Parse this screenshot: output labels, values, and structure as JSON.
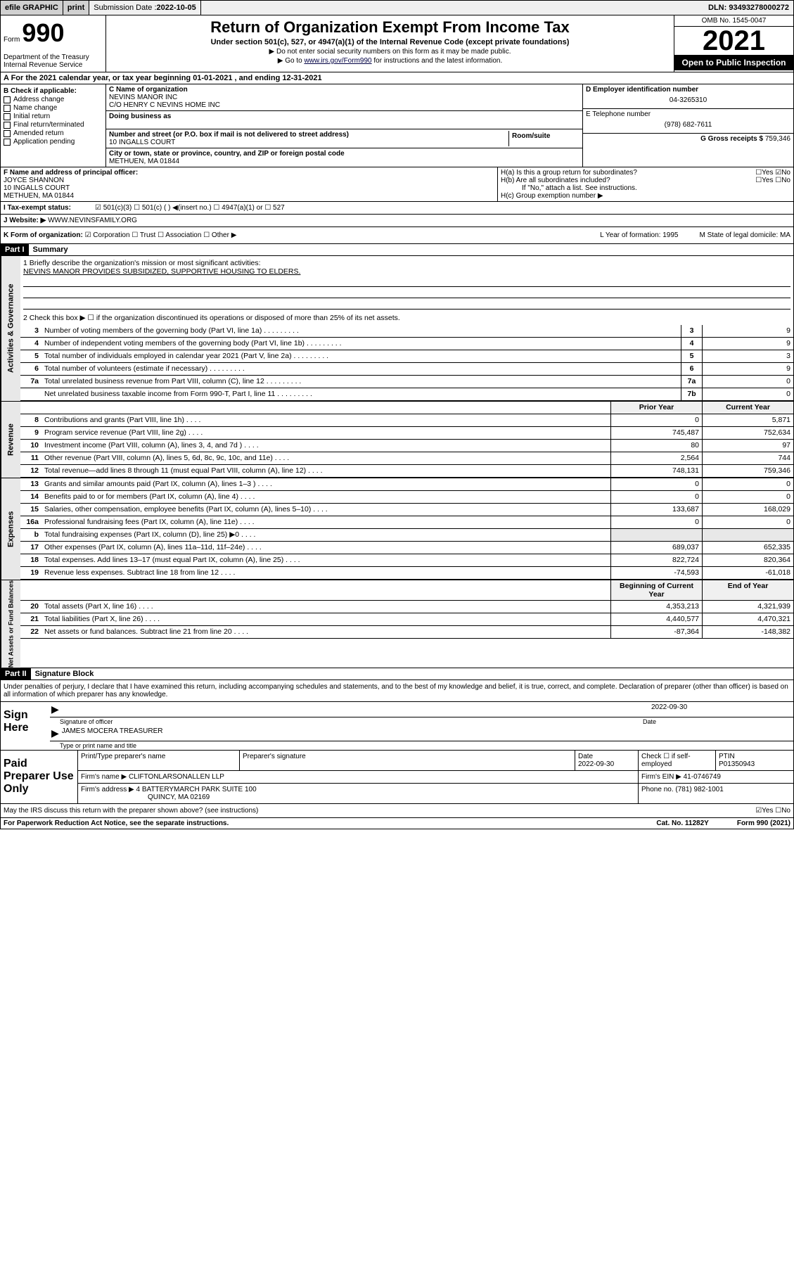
{
  "topbar": {
    "efile": "efile GRAPHIC",
    "print": "print",
    "sub_label": "Submission Date : ",
    "sub_date": "2022-10-05",
    "dln": "DLN: 93493278000272"
  },
  "header": {
    "form_word": "Form",
    "form_num": "990",
    "dept": "Department of the Treasury\nInternal Revenue Service",
    "title": "Return of Organization Exempt From Income Tax",
    "subtitle": "Under section 501(c), 527, or 4947(a)(1) of the Internal Revenue Code (except private foundations)",
    "note1": "▶ Do not enter social security numbers on this form as it may be made public.",
    "note2_pre": "▶ Go to ",
    "note2_link": "www.irs.gov/Form990",
    "note2_post": " for instructions and the latest information.",
    "omb": "OMB No. 1545-0047",
    "year": "2021",
    "inspect": "Open to Public Inspection"
  },
  "row_A": "A For the 2021 calendar year, or tax year beginning 01-01-2021    , and ending 12-31-2021",
  "box_B": {
    "hdr": "B Check if applicable:",
    "items": [
      "Address change",
      "Name change",
      "Initial return",
      "Final return/terminated",
      "Amended return",
      "Application pending"
    ]
  },
  "box_C": {
    "name_lbl": "C Name of organization",
    "name1": "NEVINS MANOR INC",
    "name2": "C/O HENRY C NEVINS HOME INC",
    "dba_lbl": "Doing business as",
    "addr_lbl": "Number and street (or P.O. box if mail is not delivered to street address)",
    "room_lbl": "Room/suite",
    "addr": "10 INGALLS COURT",
    "city_lbl": "City or town, state or province, country, and ZIP or foreign postal code",
    "city": "METHUEN, MA  01844"
  },
  "box_D": {
    "lbl": "D Employer identification number",
    "val": "04-3265310"
  },
  "box_E": {
    "lbl": "E Telephone number",
    "val": "(978) 682-7611"
  },
  "box_G": {
    "lbl": "G Gross receipts $",
    "val": "759,346"
  },
  "box_F": {
    "lbl": "F Name and address of principal officer:",
    "line1": "JOYCE SHANNON",
    "line2": "10 INGALLS COURT",
    "line3": "METHUEN, MA  01844"
  },
  "box_H": {
    "a": "H(a)  Is this a group return for subordinates?",
    "a_ans": "☐Yes ☑No",
    "b": "H(b)  Are all subordinates included?",
    "b_ans": "☐Yes ☐No",
    "b_note": "If \"No,\" attach a list. See instructions.",
    "c": "H(c)  Group exemption number ▶"
  },
  "row_I": {
    "lbl": "I   Tax-exempt status:",
    "opts": "☑ 501(c)(3)   ☐ 501(c) (  ) ◀(insert no.)   ☐ 4947(a)(1) or   ☐ 527"
  },
  "row_J": {
    "lbl": "J   Website: ▶",
    "val": "WWW.NEVINSFAMILY.ORG"
  },
  "row_K": {
    "lbl": "K Form of organization:",
    "opts": "☑ Corporation  ☐ Trust  ☐ Association  ☐ Other ▶",
    "L": "L Year of formation: 1995",
    "M": "M State of legal domicile: MA"
  },
  "part1": {
    "hdr": "Part I",
    "title": "Summary",
    "q1_lbl": "1   Briefly describe the organization's mission or most significant activities:",
    "q1_val": "NEVINS MANOR PROVIDES SUBSIDIZED, SUPPORTIVE HOUSING TO ELDERS.",
    "q2": "2   Check this box ▶ ☐  if the organization discontinued its operations or disposed of more than 25% of its net assets."
  },
  "gov_lines": [
    {
      "n": "3",
      "t": "Number of voting members of the governing body (Part VI, line 1a)",
      "box": "3",
      "v": "9"
    },
    {
      "n": "4",
      "t": "Number of independent voting members of the governing body (Part VI, line 1b)",
      "box": "4",
      "v": "9"
    },
    {
      "n": "5",
      "t": "Total number of individuals employed in calendar year 2021 (Part V, line 2a)",
      "box": "5",
      "v": "3"
    },
    {
      "n": "6",
      "t": "Total number of volunteers (estimate if necessary)",
      "box": "6",
      "v": "9"
    },
    {
      "n": "7a",
      "t": "Total unrelated business revenue from Part VIII, column (C), line 12",
      "box": "7a",
      "v": "0"
    },
    {
      "n": "",
      "t": "Net unrelated business taxable income from Form 990-T, Part I, line 11",
      "box": "7b",
      "v": "0"
    }
  ],
  "col_hdrs": {
    "prior": "Prior Year",
    "current": "Current Year",
    "bcy": "Beginning of Current Year",
    "eoy": "End of Year"
  },
  "rev_lines": [
    {
      "n": "8",
      "t": "Contributions and grants (Part VIII, line 1h)",
      "p": "0",
      "c": "5,871"
    },
    {
      "n": "9",
      "t": "Program service revenue (Part VIII, line 2g)",
      "p": "745,487",
      "c": "752,634"
    },
    {
      "n": "10",
      "t": "Investment income (Part VIII, column (A), lines 3, 4, and 7d )",
      "p": "80",
      "c": "97"
    },
    {
      "n": "11",
      "t": "Other revenue (Part VIII, column (A), lines 5, 6d, 8c, 9c, 10c, and 11e)",
      "p": "2,564",
      "c": "744"
    },
    {
      "n": "12",
      "t": "Total revenue—add lines 8 through 11 (must equal Part VIII, column (A), line 12)",
      "p": "748,131",
      "c": "759,346"
    }
  ],
  "exp_lines": [
    {
      "n": "13",
      "t": "Grants and similar amounts paid (Part IX, column (A), lines 1–3 )",
      "p": "0",
      "c": "0"
    },
    {
      "n": "14",
      "t": "Benefits paid to or for members (Part IX, column (A), line 4)",
      "p": "0",
      "c": "0"
    },
    {
      "n": "15",
      "t": "Salaries, other compensation, employee benefits (Part IX, column (A), lines 5–10)",
      "p": "133,687",
      "c": "168,029"
    },
    {
      "n": "16a",
      "t": "Professional fundraising fees (Part IX, column (A), line 11e)",
      "p": "0",
      "c": "0"
    },
    {
      "n": "b",
      "t": "Total fundraising expenses (Part IX, column (D), line 25) ▶0",
      "p": "",
      "c": "",
      "gray": true
    },
    {
      "n": "17",
      "t": "Other expenses (Part IX, column (A), lines 11a–11d, 11f–24e)",
      "p": "689,037",
      "c": "652,335"
    },
    {
      "n": "18",
      "t": "Total expenses. Add lines 13–17 (must equal Part IX, column (A), line 25)",
      "p": "822,724",
      "c": "820,364"
    },
    {
      "n": "19",
      "t": "Revenue less expenses. Subtract line 18 from line 12",
      "p": "-74,593",
      "c": "-61,018"
    }
  ],
  "bal_lines": [
    {
      "n": "20",
      "t": "Total assets (Part X, line 16)",
      "p": "4,353,213",
      "c": "4,321,939"
    },
    {
      "n": "21",
      "t": "Total liabilities (Part X, line 26)",
      "p": "4,440,577",
      "c": "4,470,321"
    },
    {
      "n": "22",
      "t": "Net assets or fund balances. Subtract line 21 from line 20",
      "p": "-87,364",
      "c": "-148,382"
    }
  ],
  "vtabs": {
    "gov": "Activities & Governance",
    "rev": "Revenue",
    "exp": "Expenses",
    "bal": "Net Assets or Fund Balances"
  },
  "part2": {
    "hdr": "Part II",
    "title": "Signature Block",
    "decl": "Under penalties of perjury, I declare that I have examined this return, including accompanying schedules and statements, and to the best of my knowledge and belief, it is true, correct, and complete. Declaration of preparer (other than officer) is based on all information of which preparer has any knowledge."
  },
  "sign": {
    "lbl": "Sign Here",
    "sig_lbl": "Signature of officer",
    "date_lbl": "Date",
    "date": "2022-09-30",
    "name": "JAMES MOCERA  TREASURER",
    "name_lbl": "Type or print name and title"
  },
  "prep": {
    "lbl": "Paid Preparer Use Only",
    "h1": "Print/Type preparer's name",
    "h2": "Preparer's signature",
    "h3": "Date",
    "h3v": "2022-09-30",
    "h4": "Check ☐ if self-employed",
    "h5": "PTIN",
    "h5v": "P01350943",
    "firm_lbl": "Firm's name    ▶",
    "firm": "CLIFTONLARSONALLEN LLP",
    "ein_lbl": "Firm's EIN ▶",
    "ein": "41-0746749",
    "addr_lbl": "Firm's address ▶",
    "addr1": "4 BATTERYMARCH PARK SUITE 100",
    "addr2": "QUINCY, MA  02169",
    "phone_lbl": "Phone no.",
    "phone": "(781) 982-1001"
  },
  "discuss": {
    "q": "May the IRS discuss this return with the preparer shown above? (see instructions)",
    "ans": "☑Yes  ☐No"
  },
  "footer": {
    "l": "For Paperwork Reduction Act Notice, see the separate instructions.",
    "c": "Cat. No. 11282Y",
    "r": "Form 990 (2021)"
  }
}
